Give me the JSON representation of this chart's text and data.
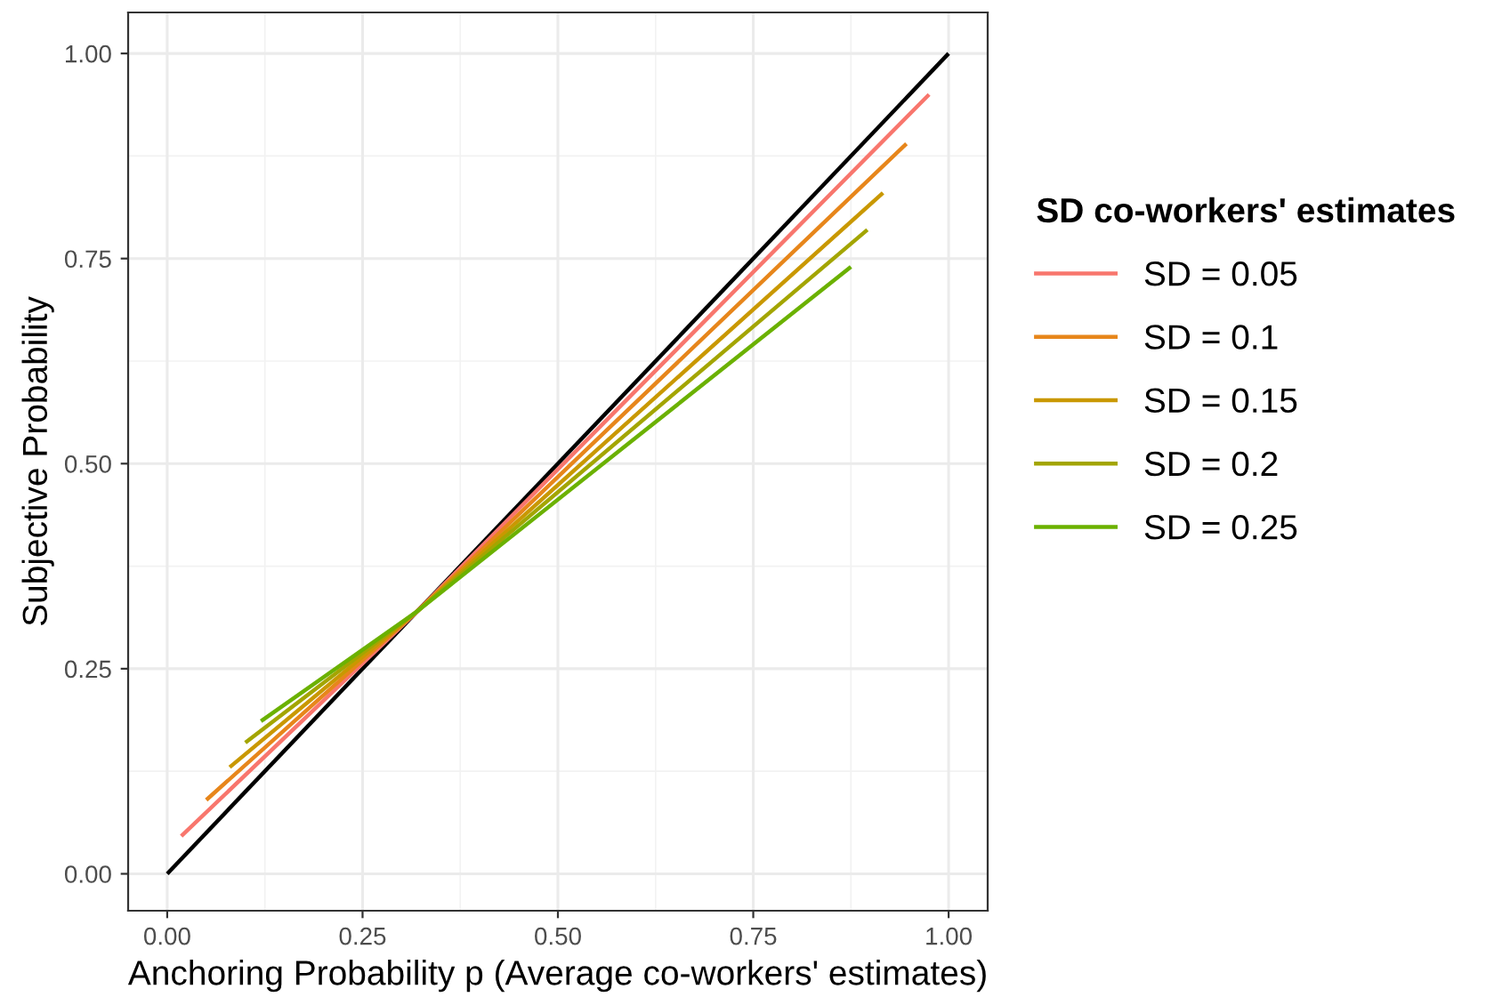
{
  "chart_data": {
    "type": "line",
    "xlabel": "Anchoring Probability p (Average co-workers' estimates)",
    "ylabel": "Subjective Probability",
    "legend_title": "SD co-workers' estimates",
    "legend": "right",
    "grid": true,
    "xlim": [
      -0.05,
      1.05
    ],
    "ylim": [
      -0.045,
      1.05
    ],
    "xticks": [
      {
        "value": 0,
        "label": "0.00"
      },
      {
        "value": 0.25,
        "label": "0.25"
      },
      {
        "value": 0.5,
        "label": "0.50"
      },
      {
        "value": 0.75,
        "label": "0.75"
      },
      {
        "value": 1,
        "label": "1.00"
      }
    ],
    "yticks": [
      {
        "value": 0,
        "label": "0.00"
      },
      {
        "value": 0.25,
        "label": "0.25"
      },
      {
        "value": 0.5,
        "label": "0.50"
      },
      {
        "value": 0.75,
        "label": "0.75"
      },
      {
        "value": 1,
        "label": "1.00"
      }
    ],
    "series": [
      {
        "color": "#000000",
        "x": [
          0,
          1
        ],
        "values": [
          0,
          1
        ]
      },
      {
        "name": "SD = 0.05",
        "color": "#F8766D",
        "x": [
          0.018,
          0.32,
          0.975
        ],
        "values": [
          0.046,
          0.32,
          0.95
        ]
      },
      {
        "name": "SD = 0.1",
        "color": "#E7861B",
        "x": [
          0.05,
          0.32,
          0.946
        ],
        "values": [
          0.09,
          0.32,
          0.89
        ]
      },
      {
        "name": "SD = 0.15",
        "color": "#C99800",
        "x": [
          0.08,
          0.32,
          0.916
        ],
        "values": [
          0.13,
          0.32,
          0.83
        ]
      },
      {
        "name": "SD = 0.2",
        "color": "#A3A500",
        "x": [
          0.1,
          0.32,
          0.896
        ],
        "values": [
          0.16,
          0.32,
          0.785
        ]
      },
      {
        "name": "SD = 0.25",
        "color": "#6BB100",
        "x": [
          0.12,
          0.32,
          0.875
        ],
        "values": [
          0.186,
          0.32,
          0.74
        ]
      }
    ]
  }
}
